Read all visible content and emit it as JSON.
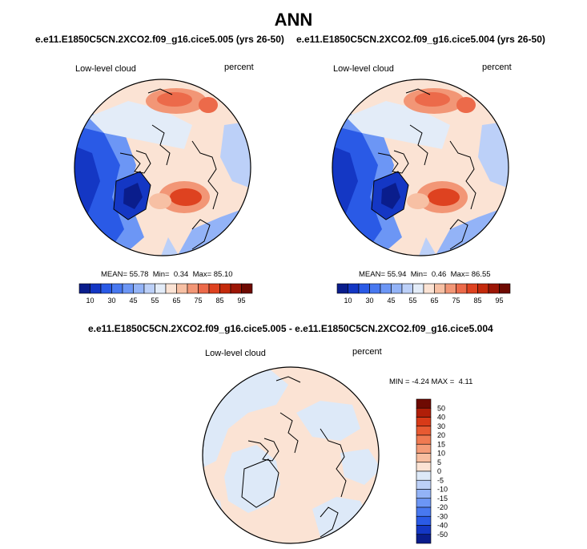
{
  "main_title": "ANN",
  "panels": [
    {
      "case_title": "e.e11.E1850C5CN.2XCO2.f09_g16.cice5.005 (yrs 26-50)",
      "variable": "Low-level cloud",
      "units": "percent",
      "stats": {
        "mean_label": "MEAN=",
        "mean": "55.78",
        "min_label": "Min=",
        "min": "0.34",
        "max_label": "Max=",
        "max": "85.10"
      }
    },
    {
      "case_title": "e.e11.E1850C5CN.2XCO2.f09_g16.cice5.004 (yrs 26-50)",
      "variable": "Low-level cloud",
      "units": "percent",
      "stats": {
        "mean_label": "MEAN=",
        "mean": "55.94",
        "min_label": "Min=",
        "min": "0.46",
        "max_label": "Max=",
        "max": "86.55"
      }
    }
  ],
  "diff_panel": {
    "title": "e.e11.E1850C5CN.2XCO2.f09_g16.cice5.005 - e.e11.E1850C5CN.2XCO2.f09_g16.cice5.004",
    "variable": "Low-level cloud",
    "units": "percent",
    "stats": {
      "min_label": "MIN =",
      "min": "-4.24",
      "max_label": "MAX =",
      "max": "4.11"
    }
  },
  "chart_data": [
    {
      "type": "heatmap",
      "projection": "polar-stereographic-north",
      "title": "e.e11.E1850C5CN.2XCO2.f09_g16.cice5.005 (yrs 26-50)",
      "variable": "Low-level cloud",
      "units": "percent",
      "stats": {
        "mean": 55.78,
        "min": 0.34,
        "max": 85.1
      },
      "colorbar": {
        "orientation": "horizontal",
        "levels": [
          10,
          20,
          30,
          40,
          45,
          50,
          55,
          60,
          65,
          70,
          75,
          80,
          85,
          90,
          95
        ],
        "tick_labels": [
          "10",
          "30",
          "45",
          "55",
          "65",
          "75",
          "85",
          "95"
        ],
        "colors": [
          "#0a1d8c",
          "#1437c4",
          "#2a5ae6",
          "#4878f0",
          "#6c96f5",
          "#93b3f7",
          "#bcd0f8",
          "#e3ecf8",
          "#fbe3d4",
          "#f7c0a4",
          "#f29676",
          "#ec6a4a",
          "#de4220",
          "#c42a0c",
          "#9c1606",
          "#6e0a02"
        ]
      }
    },
    {
      "type": "heatmap",
      "projection": "polar-stereographic-north",
      "title": "e.e11.E1850C5CN.2XCO2.f09_g16.cice5.004 (yrs 26-50)",
      "variable": "Low-level cloud",
      "units": "percent",
      "stats": {
        "mean": 55.94,
        "min": 0.46,
        "max": 86.55
      },
      "colorbar": {
        "orientation": "horizontal",
        "levels": [
          10,
          20,
          30,
          40,
          45,
          50,
          55,
          60,
          65,
          70,
          75,
          80,
          85,
          90,
          95
        ],
        "tick_labels": [
          "10",
          "30",
          "45",
          "55",
          "65",
          "75",
          "85",
          "95"
        ],
        "colors": [
          "#0a1d8c",
          "#1437c4",
          "#2a5ae6",
          "#4878f0",
          "#6c96f5",
          "#93b3f7",
          "#bcd0f8",
          "#e3ecf8",
          "#fbe3d4",
          "#f7c0a4",
          "#f29676",
          "#ec6a4a",
          "#de4220",
          "#c42a0c",
          "#9c1606",
          "#6e0a02"
        ]
      }
    },
    {
      "type": "heatmap",
      "projection": "polar-stereographic-north",
      "title": "e.e11.E1850C5CN.2XCO2.f09_g16.cice5.005 - e.e11.E1850C5CN.2XCO2.f09_g16.cice5.004",
      "variable": "Low-level cloud",
      "units": "percent",
      "stats": {
        "min": -4.24,
        "max": 4.11
      },
      "colorbar": {
        "orientation": "vertical",
        "tick_labels": [
          "50",
          "40",
          "30",
          "20",
          "15",
          "10",
          "5",
          "0",
          "-5",
          "-10",
          "-15",
          "-20",
          "-30",
          "-40",
          "-50"
        ],
        "colors": [
          "#6e0a02",
          "#b01e08",
          "#d83a18",
          "#e85a32",
          "#f07a52",
          "#f49c78",
          "#f7bea0",
          "#fbe3d4",
          "#dde9f8",
          "#bcd0f8",
          "#93b3f7",
          "#6c96f5",
          "#4878f0",
          "#2a5ae6",
          "#1437c4",
          "#0a1d8c"
        ]
      }
    }
  ]
}
